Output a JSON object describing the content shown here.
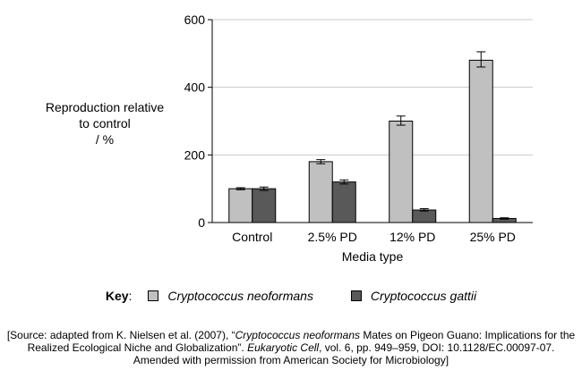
{
  "chart_data": {
    "type": "bar",
    "categories": [
      "Control",
      "2.5% PD",
      "12% PD",
      "25% PD"
    ],
    "series": [
      {
        "name": "Cryptococcus neoformans",
        "values": [
          100,
          180,
          300,
          480
        ],
        "error_low": [
          97,
          174,
          288,
          460
        ],
        "error_high": [
          103,
          186,
          315,
          505
        ],
        "color": "#c0c0c0"
      },
      {
        "name": "Cryptococcus gattii",
        "values": [
          100,
          120,
          37,
          12
        ],
        "error_low": [
          95,
          114,
          34,
          10
        ],
        "error_high": [
          105,
          126,
          41,
          14
        ],
        "color": "#595959"
      }
    ],
    "xlabel": "Media type",
    "ylabel_lines": [
      "Reproduction relative",
      "to control",
      "/ %"
    ],
    "yticks": [
      0,
      200,
      400,
      600
    ],
    "ylim": [
      0,
      600
    ],
    "grid": true,
    "legend_title": "Key",
    "legend_placement": "bottom"
  },
  "source": {
    "line1_a": "[Source: adapted from K. Nielsen et al. (2007), “",
    "line1_b": "Cryptococcus neoformans",
    "line1_c": " Mates on Pigeon Guano: Implications for the",
    "line2_a": "Realized Ecological Niche and Globalization”. ",
    "line2_b": "Eukaryotic Cell",
    "line2_c": ", vol. 6, pp. 949–959, DOI: 10.1128/EC.00097-07.",
    "line3": "Amended with permission from American Society for Microbiology]"
  }
}
